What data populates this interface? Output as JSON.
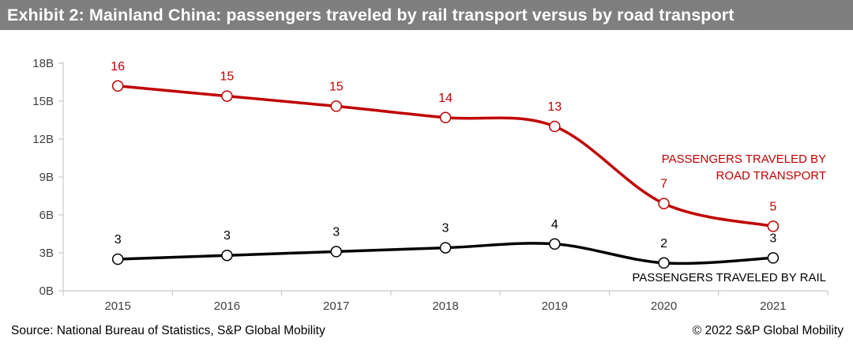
{
  "header": {
    "title": "Exhibit 2: Mainland China: passengers traveled by rail transport versus by road transport"
  },
  "footer": {
    "source": "Source: National Bureau of Statistics, S&P Global Mobility",
    "copyright": "© 2022 S&P Global Mobility"
  },
  "colors": {
    "road": "#c00000",
    "rail": "#000000",
    "title_bar": "#7f7f7f",
    "axis": "#bfbfbf"
  },
  "chart_data": {
    "type": "line",
    "title": "Exhibit 2: Mainland China: passengers traveled by rail transport versus by road transport",
    "xlabel": "",
    "ylabel": "",
    "ylim": [
      0,
      18
    ],
    "y_tick_values": [
      0,
      3,
      6,
      9,
      12,
      15,
      18
    ],
    "y_tick_labels": [
      "0B",
      "3B",
      "6B",
      "9B",
      "12B",
      "15B",
      "18B"
    ],
    "categories": [
      "2015",
      "2016",
      "2017",
      "2018",
      "2019",
      "2020",
      "2021"
    ],
    "grid": false,
    "series": [
      {
        "name": "PASSENGERS TRAVELED BY ROAD TRANSPORT",
        "label_lines": [
          "PASSENGERS TRAVELED BY",
          "ROAD TRANSPORT"
        ],
        "values": [
          16.2,
          15.4,
          14.6,
          13.7,
          13.0,
          6.9,
          5.1
        ],
        "data_labels": [
          "16",
          "15",
          "15",
          "14",
          "13",
          "7",
          "5"
        ],
        "color": "#c00000"
      },
      {
        "name": "PASSENGERS TRAVELED BY RAIL",
        "label_lines": [
          "PASSENGERS TRAVELED BY RAIL"
        ],
        "values": [
          2.5,
          2.8,
          3.1,
          3.4,
          3.7,
          2.2,
          2.6
        ],
        "data_labels": [
          "3",
          "3",
          "3",
          "3",
          "4",
          "2",
          "3"
        ],
        "color": "#000000"
      }
    ]
  }
}
